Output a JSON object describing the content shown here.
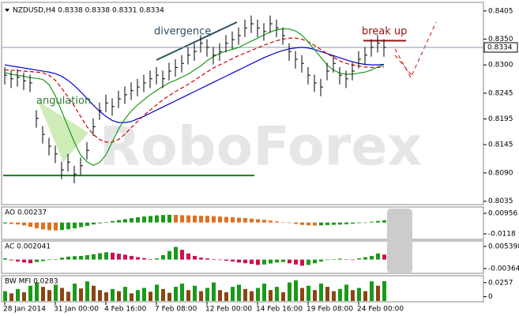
{
  "watermark": "RoboForex",
  "chart_data": [
    {
      "type": "ohlc",
      "title": "NZDUSD,H4  0.8338 0.8338 0.8331 0.8334",
      "categories": [
        "28 Jan 2014",
        null,
        null,
        null,
        null,
        null,
        null,
        null,
        "31 Jan 00:00",
        null,
        null,
        null,
        null,
        null,
        null,
        null,
        "4 Feb 16:00",
        null,
        null,
        null,
        null,
        null,
        null,
        null,
        "7 Feb 08:00",
        null,
        null,
        null,
        null,
        null,
        null,
        null,
        "12 Feb 00:00",
        null,
        null,
        null,
        null,
        null,
        null,
        null,
        "14 Feb 16:00",
        null,
        null,
        null,
        null,
        null,
        null,
        null,
        "19 Feb 08:00",
        null,
        null,
        null,
        null,
        null,
        null,
        null,
        "24 Feb 00:00",
        null,
        null,
        null,
        null
      ],
      "high": [
        0.8296,
        0.8289,
        0.8292,
        0.8285,
        0.8281,
        0.8212,
        0.8181,
        0.8158,
        0.8143,
        0.8112,
        0.8127,
        0.8104,
        0.812,
        0.815,
        0.8196,
        0.8227,
        0.8242,
        0.8235,
        0.825,
        0.8258,
        0.8266,
        0.8273,
        0.8281,
        0.8289,
        0.8296,
        0.8289,
        0.8304,
        0.8311,
        0.8319,
        0.8335,
        0.8342,
        0.8358,
        0.835,
        0.8335,
        0.8342,
        0.8358,
        0.8365,
        0.8373,
        0.8388,
        0.8396,
        0.8388,
        0.8381,
        0.8396,
        0.8388,
        0.8373,
        0.8342,
        0.8327,
        0.8319,
        0.8296,
        0.8281,
        0.8273,
        0.8304,
        0.8319,
        0.8296,
        0.8289,
        0.8304,
        0.8327,
        0.8335,
        0.835,
        0.8358,
        0.835
      ],
      "low": [
        0.8262,
        0.8255,
        0.8258,
        0.8251,
        0.8247,
        0.8178,
        0.8147,
        0.8124,
        0.8109,
        0.8078,
        0.8093,
        0.807,
        0.8086,
        0.8116,
        0.8162,
        0.8193,
        0.8208,
        0.8201,
        0.8216,
        0.8224,
        0.8232,
        0.8239,
        0.8247,
        0.8255,
        0.8262,
        0.8255,
        0.827,
        0.8277,
        0.8285,
        0.8301,
        0.8308,
        0.8324,
        0.8316,
        0.8301,
        0.8308,
        0.8324,
        0.8331,
        0.8339,
        0.8354,
        0.8362,
        0.8354,
        0.8347,
        0.8362,
        0.8354,
        0.8339,
        0.8308,
        0.8293,
        0.8285,
        0.8262,
        0.8247,
        0.8239,
        0.827,
        0.8285,
        0.8262,
        0.8255,
        0.827,
        0.8293,
        0.8301,
        0.8316,
        0.8324,
        0.8316
      ],
      "close": [
        0.828,
        0.8273,
        0.8276,
        0.8269,
        0.8265,
        0.8196,
        0.8165,
        0.8142,
        0.8127,
        0.8096,
        0.8111,
        0.8088,
        0.8104,
        0.8134,
        0.818,
        0.8211,
        0.8226,
        0.8219,
        0.8234,
        0.8242,
        0.825,
        0.8257,
        0.8265,
        0.8273,
        0.828,
        0.8273,
        0.8288,
        0.8295,
        0.8303,
        0.8319,
        0.8326,
        0.8342,
        0.8334,
        0.8319,
        0.8326,
        0.8342,
        0.8349,
        0.8357,
        0.8372,
        0.838,
        0.8372,
        0.8365,
        0.838,
        0.8372,
        0.8357,
        0.8326,
        0.8311,
        0.8303,
        0.828,
        0.8265,
        0.8257,
        0.8288,
        0.8303,
        0.828,
        0.8273,
        0.8288,
        0.8311,
        0.8319,
        0.8334,
        0.8342,
        0.8334
      ],
      "color": "#000000",
      "series": [
        {
          "color": "#0000cc",
          "dashed": false,
          "values": [
            0.83,
            0.8298,
            0.8296,
            0.8294,
            0.8292,
            0.829,
            0.8288,
            0.8286,
            0.8283,
            0.8278,
            0.827,
            0.826,
            0.8248,
            0.8235,
            0.8222,
            0.821,
            0.82,
            0.8192,
            0.8188,
            0.8188,
            0.819,
            0.8195,
            0.82,
            0.8206,
            0.8212,
            0.8218,
            0.8224,
            0.823,
            0.8236,
            0.8242,
            0.8248,
            0.8254,
            0.826,
            0.8266,
            0.8272,
            0.8278,
            0.8284,
            0.829,
            0.8296,
            0.8302,
            0.8308,
            0.8314,
            0.8319,
            0.8324,
            0.8328,
            0.8331,
            0.8333,
            0.8334,
            0.8333,
            0.833,
            0.8326,
            0.8322,
            0.8318,
            0.8314,
            0.831,
            0.8306,
            0.8303,
            0.8301,
            0.83,
            0.83,
            0.8301
          ]
        },
        {
          "color": "#cc0000",
          "dashed": true,
          "values": [
            0.829,
            0.829,
            0.8289,
            0.8288,
            0.8287,
            0.8286,
            0.8285,
            0.828,
            0.827,
            0.8255,
            0.8238,
            0.822,
            0.82,
            0.818,
            0.8165,
            0.8155,
            0.815,
            0.815,
            0.8155,
            0.8165,
            0.8178,
            0.819,
            0.8202,
            0.8212,
            0.8222,
            0.8232,
            0.824,
            0.8248,
            0.8255,
            0.8262,
            0.827,
            0.8278,
            0.8286,
            0.8294,
            0.83,
            0.8306,
            0.8312,
            0.8318,
            0.8323,
            0.8328,
            0.8333,
            0.8338,
            0.8343,
            0.8347,
            0.835,
            0.8352,
            0.8352,
            0.835,
            0.8345,
            0.8338,
            0.833,
            0.8322,
            0.8315,
            0.8308,
            0.8303,
            0.83,
            0.8298,
            0.8296,
            0.8295,
            0.8295,
            0.8296
          ]
        },
        {
          "color": "#1a9a1a",
          "dashed": false,
          "values": [
            0.8285,
            0.8282,
            0.828,
            0.8278,
            0.8275,
            0.8274,
            0.8272,
            0.8262,
            0.824,
            0.821,
            0.818,
            0.815,
            0.8125,
            0.8112,
            0.8105,
            0.811,
            0.8125,
            0.815,
            0.8175,
            0.8195,
            0.821,
            0.8222,
            0.8232,
            0.8242,
            0.825,
            0.8258,
            0.8265,
            0.827,
            0.8276,
            0.8282,
            0.829,
            0.8298,
            0.8308,
            0.8316,
            0.8322,
            0.8327,
            0.833,
            0.8334,
            0.834,
            0.8346,
            0.8352,
            0.8358,
            0.8364,
            0.8368,
            0.837,
            0.837,
            0.8366,
            0.8358,
            0.8345,
            0.833,
            0.8315,
            0.83,
            0.829,
            0.8284,
            0.8282,
            0.8282,
            0.8284,
            0.8286,
            0.829,
            0.8296,
            0.83
          ]
        }
      ],
      "current_price": 0.8334,
      "support_level": {
        "value": 0.8085,
        "color": "#1a7a1a"
      },
      "break_level": {
        "value": 0.8347,
        "color": "#9a1010"
      },
      "annotations": [
        {
          "text": "divergence",
          "color": "#2f4f5f"
        },
        {
          "text": "angulation",
          "color": "#2e7d32"
        },
        {
          "text": "break up",
          "color": "#9a1010"
        }
      ],
      "ylim": [
        0.803,
        0.842
      ],
      "yticks": [
        0.8405,
        {
          "value": 0.835,
          "label": "0.8350"
        },
        {
          "value": 0.83,
          "label": "0.8300"
        },
        0.8245,
        0.8195,
        0.8145,
        {
          "value": 0.809,
          "label": "0.8090"
        },
        0.8035
      ]
    },
    {
      "type": "bar",
      "title": "AO 0.00237",
      "up_color": "#1a9a1a",
      "down_color": "#e07020",
      "values": [
        -0.001,
        -0.0015,
        -0.002,
        -0.003,
        -0.0045,
        -0.006,
        -0.0072,
        -0.008,
        -0.0082,
        -0.0078,
        -0.007,
        -0.006,
        -0.0048,
        -0.0035,
        -0.002,
        -0.0008,
        0.0005,
        0.0015,
        0.0025,
        0.0035,
        0.0045,
        0.0055,
        0.0062,
        0.0068,
        0.0074,
        0.0078,
        0.008,
        0.0079,
        0.0076,
        0.0074,
        0.0072,
        0.007,
        0.0069,
        0.0066,
        0.0062,
        0.0058,
        0.0054,
        0.005,
        0.0046,
        0.004,
        0.0034,
        0.0028,
        0.002,
        0.0012,
        0.0004,
        -0.0005,
        -0.0015,
        -0.0025,
        -0.003,
        -0.0032,
        -0.003,
        -0.0027,
        -0.0024,
        -0.0022,
        -0.0018,
        -0.0012,
        -0.0006,
        0.0,
        0.0008,
        0.0016,
        0.00237
      ],
      "ylim": [
        -0.0167,
        0.0153
      ],
      "yticks": [
        0.00956,
        -0.0118
      ]
    },
    {
      "type": "bar",
      "title": "AC 0.002041",
      "up_color": "#1a9a1a",
      "down_color": "#d0104a",
      "values": [
        0.0005,
        -0.0003,
        -0.0008,
        -0.0012,
        -0.0015,
        -0.001,
        -0.0006,
        -0.0002,
        0.0002,
        0.0008,
        0.0012,
        0.0014,
        0.0015,
        0.0018,
        0.0022,
        0.0026,
        0.003,
        0.0028,
        0.0024,
        0.002,
        0.0015,
        0.001,
        0.0006,
        0.0002,
        0.0005,
        0.0018,
        0.0035,
        0.0052,
        0.004,
        0.0025,
        0.0015,
        0.0008,
        0.0005,
        0.0002,
        -0.0002,
        -0.0005,
        -0.0008,
        -0.0012,
        -0.0015,
        -0.0018,
        -0.0022,
        -0.002,
        -0.0016,
        -0.0012,
        -0.001,
        -0.0015,
        -0.002,
        -0.0025,
        -0.0022,
        -0.0015,
        -0.0008,
        -0.0002,
        0.0002,
        0.0004,
        0.0001,
        -0.0002,
        0.0005,
        0.001,
        0.0015,
        0.0025,
        0.002041
      ],
      "ylim": [
        -0.0053,
        0.0073
      ],
      "yticks": [
        0.005398,
        -0.00364
      ]
    },
    {
      "type": "bar",
      "title": "BW MFI 0.0283",
      "up_color": "#1a9a1a",
      "down_color": "#8b4513",
      "values": [
        0.01,
        0.006,
        0.014,
        0.008,
        0.02,
        0.026,
        0.018,
        0.012,
        0.022,
        0.016,
        0.009,
        0.024,
        0.015,
        0.028,
        0.02,
        0.012,
        0.008,
        0.014,
        0.01,
        0.018,
        0.006,
        0.012,
        0.016,
        0.009,
        0.022,
        0.014,
        0.007,
        0.018,
        0.024,
        0.012,
        0.02,
        0.01,
        0.016,
        0.026,
        0.012,
        0.008,
        0.018,
        0.022,
        0.014,
        0.01,
        0.016,
        0.024,
        0.012,
        0.018,
        0.008,
        0.026,
        0.03,
        0.016,
        0.02,
        0.012,
        0.024,
        0.018,
        0.01,
        0.014,
        0.022,
        0.012,
        0.016,
        0.01,
        0.028,
        0.02,
        0.0283
      ],
      "ylim": [
        -0.008,
        0.037
      ],
      "yticks": [
        0.0257,
        0
      ]
    }
  ]
}
